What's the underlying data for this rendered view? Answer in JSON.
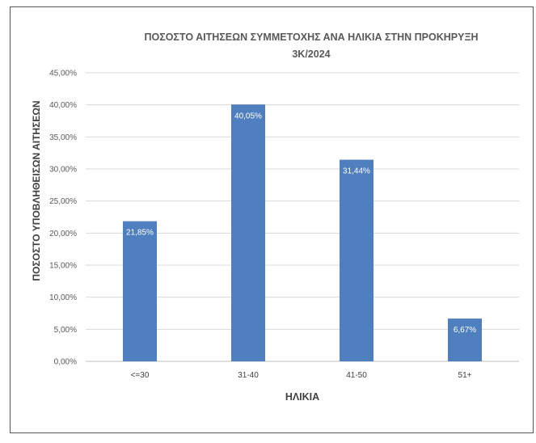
{
  "chart_data": {
    "type": "bar",
    "title_lines": [
      "ΠΟΣΟΣΤΟ ΑΙΤΗΣΕΩΝ ΣΥΜΜΕΤΟΧΗΣ ΑΝΑ ΗΛΙΚΙΑ ΣΤΗΝ ΠΡΟΚΗΡΥΞΗ",
      "3Κ/2024"
    ],
    "xlabel": "ΗΛΙΚΙΑ",
    "ylabel": "ΠΟΣΟΣΤΟ ΥΠΟΒΛΗΘΕΙΣΩΝ ΑΙΤΗΣΕΩΝ",
    "categories": [
      "<=30",
      "31-40",
      "41-50",
      "51+"
    ],
    "values": [
      21.85,
      40.05,
      31.44,
      6.67
    ],
    "value_labels": [
      "21,85%",
      "40,05%",
      "31,44%",
      "6,67%"
    ],
    "ylim": [
      0,
      45
    ],
    "yticks": [
      0,
      5,
      10,
      15,
      20,
      25,
      30,
      35,
      40,
      45
    ],
    "ytick_labels": [
      "0,00%",
      "5,00%",
      "10,00%",
      "15,00%",
      "20,00%",
      "25,00%",
      "30,00%",
      "35,00%",
      "40,00%",
      "45,00%"
    ],
    "grid": true,
    "legend": "none",
    "bar_color": "#4f7fbf"
  }
}
